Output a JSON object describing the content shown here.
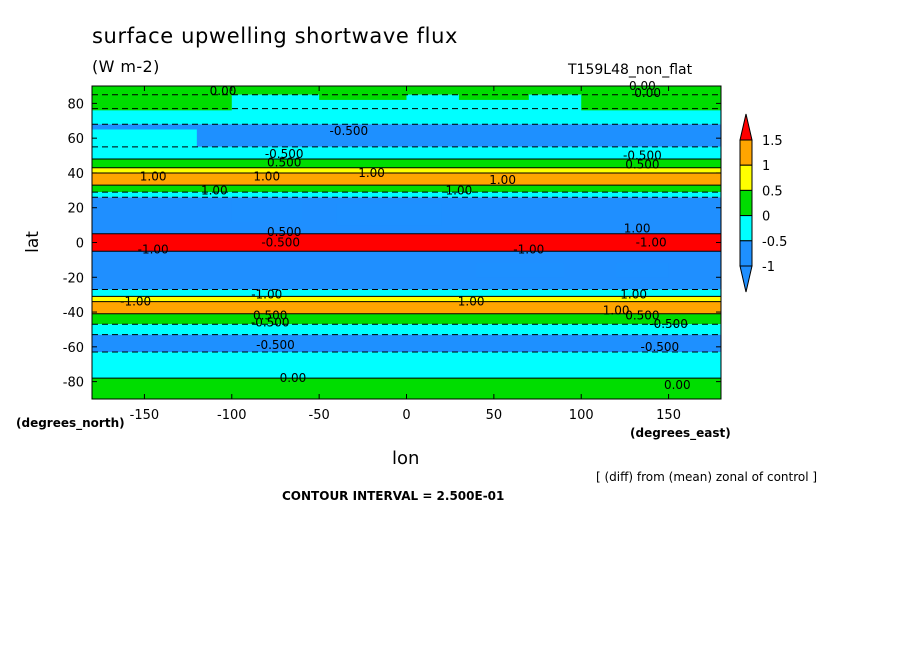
{
  "chart_data": {
    "type": "heatmap",
    "title": "surface upwelling shortwave flux",
    "units_label": "(W m-2)",
    "run_label": "T159L48_non_flat",
    "xlabel": "lon",
    "ylabel": "lat",
    "x_unit_label": "(degrees_east)",
    "y_unit_label": "(degrees_north)",
    "note": "[ (diff) from (mean) zonal of control ]",
    "contour_interval": "CONTOUR INTERVAL = 2.500E-01",
    "xlim": [
      -180,
      180
    ],
    "ylim": [
      -90,
      90
    ],
    "x_ticks": [
      -150,
      -100,
      -50,
      0,
      50,
      100,
      150
    ],
    "x_tick_labels": [
      "-150",
      "-100",
      "-50",
      "0",
      "50",
      "100",
      "150"
    ],
    "y_ticks": [
      -80,
      -60,
      -40,
      -20,
      0,
      20,
      40,
      60,
      80
    ],
    "y_tick_labels": [
      "-80",
      "-60",
      "-40",
      "-20",
      "0",
      "20",
      "40",
      "60",
      "80"
    ],
    "colorbar": {
      "levels": [
        -1,
        -0.5,
        0,
        0.5,
        1,
        1.5
      ],
      "labels": [
        "-1",
        "-0.5",
        "0",
        "0.5",
        "1",
        "1.5"
      ],
      "colors": [
        "#1f8fff",
        "#1e90ff",
        "#00ffff",
        "#00dd00",
        "#ffff00",
        "#ffa500",
        "#ff0000"
      ]
    },
    "bands": [
      {
        "lat_from": 90,
        "lat_to": 85,
        "value": 0.1
      },
      {
        "lat_from": 85,
        "lat_to": 77,
        "value": -0.3
      },
      {
        "lat_from": 77,
        "lat_to": 68,
        "value": -0.3
      },
      {
        "lat_from": 68,
        "lat_to": 55,
        "value": -0.7
      },
      {
        "lat_from": 55,
        "lat_to": 48,
        "value": -0.3
      },
      {
        "lat_from": 48,
        "lat_to": 43,
        "value": 0.2
      },
      {
        "lat_from": 43,
        "lat_to": 40,
        "value": 0.7
      },
      {
        "lat_from": 40,
        "lat_to": 33,
        "value": 1.2
      },
      {
        "lat_from": 33,
        "lat_to": 29,
        "value": 0.2
      },
      {
        "lat_from": 29,
        "lat_to": 26,
        "value": -0.3
      },
      {
        "lat_from": 26,
        "lat_to": 5,
        "value": -1.2
      },
      {
        "lat_from": 5,
        "lat_to": -5,
        "value": 1.6
      },
      {
        "lat_from": -5,
        "lat_to": -27,
        "value": -1.2
      },
      {
        "lat_from": -27,
        "lat_to": -31,
        "value": -0.3
      },
      {
        "lat_from": -31,
        "lat_to": -34,
        "value": 0.7
      },
      {
        "lat_from": -34,
        "lat_to": -41,
        "value": 1.2
      },
      {
        "lat_from": -41,
        "lat_to": -47,
        "value": 0.2
      },
      {
        "lat_from": -47,
        "lat_to": -53,
        "value": -0.3
      },
      {
        "lat_from": -53,
        "lat_to": -63,
        "value": -0.7
      },
      {
        "lat_from": -63,
        "lat_to": -78,
        "value": -0.3
      },
      {
        "lat_from": -78,
        "lat_to": -90,
        "value": 0.1
      }
    ],
    "patches": [
      {
        "lon": [
          -180,
          -100
        ],
        "lat": [
          76,
          90
        ],
        "value": 0.1
      },
      {
        "lon": [
          -50,
          0
        ],
        "lat": [
          82,
          90
        ],
        "value": 0.1
      },
      {
        "lon": [
          30,
          70
        ],
        "lat": [
          82,
          90
        ],
        "value": 0.1
      },
      {
        "lon": [
          100,
          180
        ],
        "lat": [
          76,
          90
        ],
        "value": 0.1
      },
      {
        "lon": [
          -180,
          -120
        ],
        "lat": [
          55,
          65
        ],
        "value": -0.3
      },
      {
        "lon": [
          -100,
          -60
        ],
        "lat": [
          12,
          25
        ],
        "value": -0.7
      },
      {
        "lon": [
          -40,
          20
        ],
        "lat": [
          10,
          22
        ],
        "value": -0.7
      },
      {
        "lon": [
          40,
          90
        ],
        "lat": [
          -20,
          -12
        ],
        "value": -0.7
      },
      {
        "lon": [
          120,
          150
        ],
        "lat": [
          -20,
          -12
        ],
        "value": -0.7
      },
      {
        "lon": [
          -180,
          -100
        ],
        "lat": [
          -90,
          -80
        ],
        "value": 0.1
      },
      {
        "lon": [
          100,
          180
        ],
        "lat": [
          -90,
          -82
        ],
        "value": 0.1
      }
    ],
    "contour_labels": [
      {
        "text": "0.00",
        "lon": -105,
        "lat": 87
      },
      {
        "text": "0.00",
        "lon": 138,
        "lat": 86
      },
      {
        "text": "0.00",
        "lon": 135,
        "lat": 90
      },
      {
        "text": "-0.500",
        "lon": -33,
        "lat": 64
      },
      {
        "text": "-0.500",
        "lon": -70,
        "lat": 51
      },
      {
        "text": "0.500",
        "lon": -70,
        "lat": 46
      },
      {
        "text": "-0.500",
        "lon": 135,
        "lat": 50
      },
      {
        "text": "0.500",
        "lon": 135,
        "lat": 45
      },
      {
        "text": "1.00",
        "lon": -145,
        "lat": 38
      },
      {
        "text": "1.00",
        "lon": -80,
        "lat": 38
      },
      {
        "text": "1.00",
        "lon": -20,
        "lat": 40
      },
      {
        "text": "1.00",
        "lon": 55,
        "lat": 36
      },
      {
        "text": "1.00",
        "lon": -110,
        "lat": 30
      },
      {
        "text": "1.00",
        "lon": 30,
        "lat": 30
      },
      {
        "text": "1.00",
        "lon": 132,
        "lat": 8
      },
      {
        "text": "0.500",
        "lon": -70,
        "lat": 6
      },
      {
        "text": "-0.500",
        "lon": -72,
        "lat": 0
      },
      {
        "text": "-1.00",
        "lon": -145,
        "lat": -4
      },
      {
        "text": "-1.00",
        "lon": 70,
        "lat": -4
      },
      {
        "text": "-1.00",
        "lon": 140,
        "lat": 0
      },
      {
        "text": "-1.00",
        "lon": -80,
        "lat": -30
      },
      {
        "text": "1.00",
        "lon": 37,
        "lat": -34
      },
      {
        "text": "1.00",
        "lon": 120,
        "lat": -39
      },
      {
        "text": "-1.00",
        "lon": -155,
        "lat": -34
      },
      {
        "text": "1.00",
        "lon": 130,
        "lat": -30
      },
      {
        "text": "0.500",
        "lon": -78,
        "lat": -42
      },
      {
        "text": "-0.500",
        "lon": -78,
        "lat": -46
      },
      {
        "text": "0.500",
        "lon": 135,
        "lat": -42
      },
      {
        "text": "-0.500",
        "lon": 150,
        "lat": -47
      },
      {
        "text": "-0.500",
        "lon": -75,
        "lat": -59
      },
      {
        "text": "-0.500",
        "lon": 145,
        "lat": -60
      },
      {
        "text": "0.00",
        "lon": -65,
        "lat": -78
      },
      {
        "text": "0.00",
        "lon": 155,
        "lat": -82
      }
    ]
  }
}
